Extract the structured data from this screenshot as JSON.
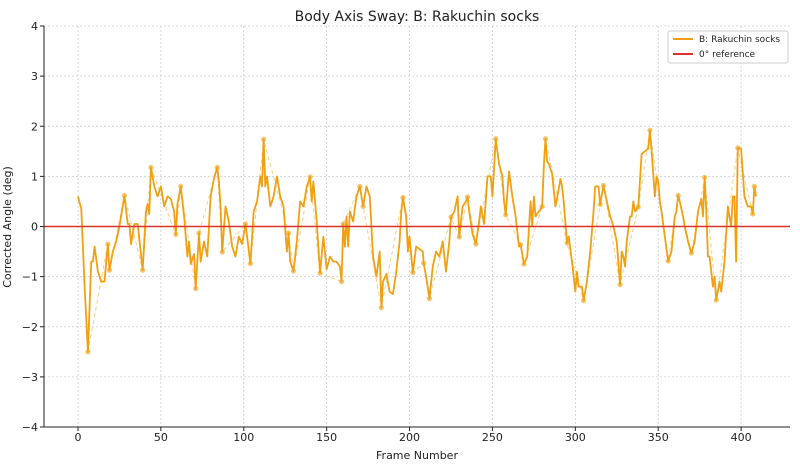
{
  "chart_data": {
    "type": "line",
    "title": "Body Axis Sway: B: Rakuchin socks",
    "xlabel": "Frame Number",
    "ylabel": "Corrected Angle (deg)",
    "xlim": [
      -20.5,
      429.5
    ],
    "ylim": [
      -4,
      4
    ],
    "xticks": [
      0,
      50,
      100,
      150,
      200,
      250,
      300,
      350,
      400
    ],
    "yticks": [
      -4,
      -3,
      -2,
      -1,
      0,
      1,
      2,
      3,
      4
    ],
    "grid": true,
    "legend_position": "top-right",
    "colors": {
      "series": "#f0a010",
      "reference": "#d9342b"
    },
    "series": [
      {
        "name": "B: Rakuchin socks",
        "style": "solid",
        "points": [
          [
            0,
            0.6
          ],
          [
            2,
            0.35
          ],
          [
            4,
            -1.2
          ],
          [
            6,
            -2.5
          ],
          [
            8,
            -0.7
          ],
          [
            9,
            -0.7
          ],
          [
            10,
            -0.4
          ],
          [
            12,
            -0.9
          ],
          [
            14,
            -1.1
          ],
          [
            16,
            -1.1
          ],
          [
            18,
            -0.35
          ],
          [
            19,
            -0.87
          ],
          [
            21,
            -0.5
          ],
          [
            23,
            -0.3
          ],
          [
            25,
            0.0
          ],
          [
            28,
            0.62
          ],
          [
            30,
            0.05
          ],
          [
            31,
            0.05
          ],
          [
            32,
            -0.35
          ],
          [
            34,
            0.05
          ],
          [
            36,
            0.05
          ],
          [
            39,
            -0.87
          ],
          [
            41,
            0.3
          ],
          [
            42,
            0.45
          ],
          [
            43,
            0.25
          ],
          [
            44,
            1.18
          ],
          [
            46,
            0.8
          ],
          [
            48,
            0.6
          ],
          [
            50,
            0.8
          ],
          [
            52,
            0.4
          ],
          [
            54,
            0.6
          ],
          [
            56,
            0.55
          ],
          [
            58,
            0.3
          ],
          [
            59,
            -0.16
          ],
          [
            60,
            0.45
          ],
          [
            62,
            0.8
          ],
          [
            64,
            0.2
          ],
          [
            66,
            -0.6
          ],
          [
            67,
            -0.3
          ],
          [
            68,
            -0.75
          ],
          [
            70,
            -0.55
          ],
          [
            71,
            -1.24
          ],
          [
            73,
            -0.13
          ],
          [
            74,
            -0.7
          ],
          [
            76,
            -0.3
          ],
          [
            78,
            -0.6
          ],
          [
            80,
            0.6
          ],
          [
            82,
            0.95
          ],
          [
            84,
            1.18
          ],
          [
            85,
            0.9
          ],
          [
            86,
            0.4
          ],
          [
            87,
            -0.51
          ],
          [
            89,
            0.4
          ],
          [
            91,
            0.1
          ],
          [
            93,
            -0.4
          ],
          [
            95,
            -0.6
          ],
          [
            97,
            -0.2
          ],
          [
            99,
            -0.35
          ],
          [
            101,
            0.05
          ],
          [
            102,
            -0.2
          ],
          [
            104,
            -0.74
          ],
          [
            106,
            0.3
          ],
          [
            108,
            0.5
          ],
          [
            110,
            1.0
          ],
          [
            111,
            0.8
          ],
          [
            112,
            1.74
          ],
          [
            113,
            0.8
          ],
          [
            114,
            1.0
          ],
          [
            116,
            0.4
          ],
          [
            118,
            0.6
          ],
          [
            120,
            1.0
          ],
          [
            122,
            0.6
          ],
          [
            124,
            0.4
          ],
          [
            126,
            -0.5
          ],
          [
            127,
            -0.13
          ],
          [
            128,
            -0.7
          ],
          [
            130,
            -0.89
          ],
          [
            132,
            -0.3
          ],
          [
            134,
            0.5
          ],
          [
            136,
            0.4
          ],
          [
            138,
            0.8
          ],
          [
            140,
            0.99
          ],
          [
            141,
            0.5
          ],
          [
            142,
            0.9
          ],
          [
            144,
            0.1
          ],
          [
            146,
            -0.93
          ],
          [
            148,
            -0.2
          ],
          [
            150,
            -0.85
          ],
          [
            152,
            -0.6
          ],
          [
            154,
            -0.7
          ],
          [
            156,
            -0.7
          ],
          [
            158,
            -0.8
          ],
          [
            159,
            -1.1
          ],
          [
            160,
            0.05
          ],
          [
            161,
            -0.4
          ],
          [
            162,
            0.2
          ],
          [
            163,
            -0.4
          ],
          [
            164,
            0.3
          ],
          [
            166,
            0.1
          ],
          [
            168,
            0.6
          ],
          [
            170,
            0.8
          ],
          [
            172,
            0.4
          ],
          [
            174,
            0.8
          ],
          [
            176,
            0.6
          ],
          [
            178,
            -0.6
          ],
          [
            180,
            -1.0
          ],
          [
            182,
            -0.5
          ],
          [
            183,
            -1.62
          ],
          [
            184,
            -1.1
          ],
          [
            186,
            -0.95
          ],
          [
            188,
            -1.3
          ],
          [
            190,
            -1.35
          ],
          [
            192,
            -0.9
          ],
          [
            194,
            -0.3
          ],
          [
            195,
            0.3
          ],
          [
            196,
            0.58
          ],
          [
            198,
            0.2
          ],
          [
            199,
            -0.5
          ],
          [
            200,
            -0.2
          ],
          [
            202,
            -0.92
          ],
          [
            204,
            -0.4
          ],
          [
            206,
            -0.45
          ],
          [
            208,
            -0.5
          ],
          [
            208.5,
            -0.73
          ],
          [
            210,
            -1.0
          ],
          [
            212,
            -1.44
          ],
          [
            214,
            -0.8
          ],
          [
            216,
            -0.5
          ],
          [
            218,
            -0.6
          ],
          [
            220,
            -0.3
          ],
          [
            222,
            -0.9
          ],
          [
            224,
            -0.3
          ],
          [
            225,
            0.19
          ],
          [
            227,
            0.3
          ],
          [
            229,
            0.6
          ],
          [
            230,
            -0.21
          ],
          [
            232,
            0.4
          ],
          [
            234,
            0.5
          ],
          [
            235,
            0.59
          ],
          [
            236,
            0.3
          ],
          [
            238,
            -0.15
          ],
          [
            240,
            -0.35
          ],
          [
            242,
            0.1
          ],
          [
            243,
            0.4
          ],
          [
            245,
            0.05
          ],
          [
            247,
            1.0
          ],
          [
            249,
            1.0
          ],
          [
            250,
            0.6
          ],
          [
            252,
            1.75
          ],
          [
            254,
            1.25
          ],
          [
            256,
            1.0
          ],
          [
            257,
            0.5
          ],
          [
            258,
            0.23
          ],
          [
            260,
            1.1
          ],
          [
            262,
            0.6
          ],
          [
            264,
            0.2
          ],
          [
            266,
            -0.4
          ],
          [
            267,
            -0.36
          ],
          [
            269,
            -0.75
          ],
          [
            271,
            -0.6
          ],
          [
            273,
            0.5
          ],
          [
            274,
            0.0
          ],
          [
            275,
            0.6
          ],
          [
            276,
            0.2
          ],
          [
            278,
            0.3
          ],
          [
            280,
            0.4
          ],
          [
            281,
            1.2
          ],
          [
            282,
            1.75
          ],
          [
            283,
            1.3
          ],
          [
            284,
            1.25
          ],
          [
            286,
            1.05
          ],
          [
            288,
            0.4
          ],
          [
            290,
            0.75
          ],
          [
            291,
            0.95
          ],
          [
            292,
            0.8
          ],
          [
            293,
            0.5
          ],
          [
            295,
            -0.33
          ],
          [
            296,
            -0.2
          ],
          [
            298,
            -0.7
          ],
          [
            300,
            -1.3
          ],
          [
            301,
            -0.9
          ],
          [
            302,
            -1.2
          ],
          [
            304,
            -1.2
          ],
          [
            305,
            -1.48
          ],
          [
            307,
            -1.1
          ],
          [
            309,
            -0.5
          ],
          [
            311,
            0.3
          ],
          [
            312,
            0.8
          ],
          [
            314,
            0.8
          ],
          [
            315,
            0.44
          ],
          [
            317,
            0.82
          ],
          [
            319,
            0.5
          ],
          [
            321,
            0.2
          ],
          [
            323,
            0.0
          ],
          [
            325,
            -0.3
          ],
          [
            327,
            -1.16
          ],
          [
            328,
            -0.5
          ],
          [
            329,
            -0.6
          ],
          [
            330,
            -0.8
          ],
          [
            331,
            -0.3
          ],
          [
            333,
            0.2
          ],
          [
            334,
            0.2
          ],
          [
            335,
            0.5
          ],
          [
            336,
            0.3
          ],
          [
            338,
            0.39
          ],
          [
            340,
            1.45
          ],
          [
            342,
            1.5
          ],
          [
            344,
            1.55
          ],
          [
            345,
            1.92
          ],
          [
            346,
            1.5
          ],
          [
            348,
            0.6
          ],
          [
            349,
            1.0
          ],
          [
            350,
            0.9
          ],
          [
            351,
            0.5
          ],
          [
            352,
            0.3
          ],
          [
            354,
            -0.2
          ],
          [
            356,
            -0.69
          ],
          [
            358,
            -0.5
          ],
          [
            360,
            0.2
          ],
          [
            361,
            0.3
          ],
          [
            362,
            0.62
          ],
          [
            363,
            0.5
          ],
          [
            365,
            0.2
          ],
          [
            366,
            0.0
          ],
          [
            368,
            -0.3
          ],
          [
            370,
            -0.53
          ],
          [
            372,
            -0.3
          ],
          [
            374,
            0.3
          ],
          [
            376,
            0.55
          ],
          [
            377,
            0.2
          ],
          [
            378,
            0.98
          ],
          [
            379,
            0.3
          ],
          [
            380,
            -0.6
          ],
          [
            381,
            -0.6
          ],
          [
            383,
            -1.2
          ],
          [
            384,
            -1.0
          ],
          [
            385,
            -1.47
          ],
          [
            387,
            -1.1
          ],
          [
            388,
            -1.3
          ],
          [
            389,
            -1.0
          ],
          [
            390,
            -0.7
          ],
          [
            392,
            0.4
          ],
          [
            394,
            0.0
          ],
          [
            395,
            0.6
          ],
          [
            396,
            0.6
          ],
          [
            397,
            -0.7
          ],
          [
            398,
            1.57
          ],
          [
            400,
            1.55
          ],
          [
            402,
            0.6
          ],
          [
            404,
            0.4
          ],
          [
            406,
            0.4
          ],
          [
            407,
            0.25
          ],
          [
            407.5,
            0.5
          ],
          [
            408,
            0.8
          ],
          [
            409,
            0.6
          ]
        ]
      },
      {
        "name": "extrema (dashed with markers)",
        "style": "dashed-markers",
        "points": [
          [
            6,
            -2.5
          ],
          [
            18,
            -0.35
          ],
          [
            19,
            -0.87
          ],
          [
            28,
            0.62
          ],
          [
            39,
            -0.87
          ],
          [
            44,
            1.18
          ],
          [
            59,
            -0.16
          ],
          [
            62,
            0.8
          ],
          [
            71,
            -1.24
          ],
          [
            73,
            -0.13
          ],
          [
            84,
            1.18
          ],
          [
            87,
            -0.51
          ],
          [
            101,
            0.05
          ],
          [
            104,
            -0.74
          ],
          [
            112,
            1.74
          ],
          [
            127,
            -0.13
          ],
          [
            130,
            -0.89
          ],
          [
            140,
            0.99
          ],
          [
            146,
            -0.93
          ],
          [
            159,
            -1.1
          ],
          [
            160,
            0.05
          ],
          [
            170,
            0.8
          ],
          [
            172,
            0.4
          ],
          [
            183,
            -1.62
          ],
          [
            196,
            0.58
          ],
          [
            202,
            -0.92
          ],
          [
            208.5,
            -0.73
          ],
          [
            212,
            -1.44
          ],
          [
            225,
            0.19
          ],
          [
            230,
            -0.21
          ],
          [
            235,
            0.59
          ],
          [
            240,
            -0.35
          ],
          [
            252,
            1.75
          ],
          [
            258,
            0.23
          ],
          [
            267,
            -0.36
          ],
          [
            269,
            -0.75
          ],
          [
            280,
            0.4
          ],
          [
            282,
            1.75
          ],
          [
            295,
            -0.33
          ],
          [
            305,
            -1.48
          ],
          [
            315,
            0.44
          ],
          [
            317,
            0.82
          ],
          [
            327,
            -1.16
          ],
          [
            338,
            0.39
          ],
          [
            345,
            1.92
          ],
          [
            356,
            -0.69
          ],
          [
            362,
            0.62
          ],
          [
            370,
            -0.53
          ],
          [
            378,
            0.98
          ],
          [
            385,
            -1.47
          ],
          [
            398,
            1.57
          ],
          [
            407,
            0.25
          ],
          [
            408,
            0.8
          ]
        ]
      }
    ],
    "reference_line": {
      "name": "0° reference",
      "y": 0
    },
    "legend": [
      "B: Rakuchin socks",
      "0° reference"
    ]
  }
}
